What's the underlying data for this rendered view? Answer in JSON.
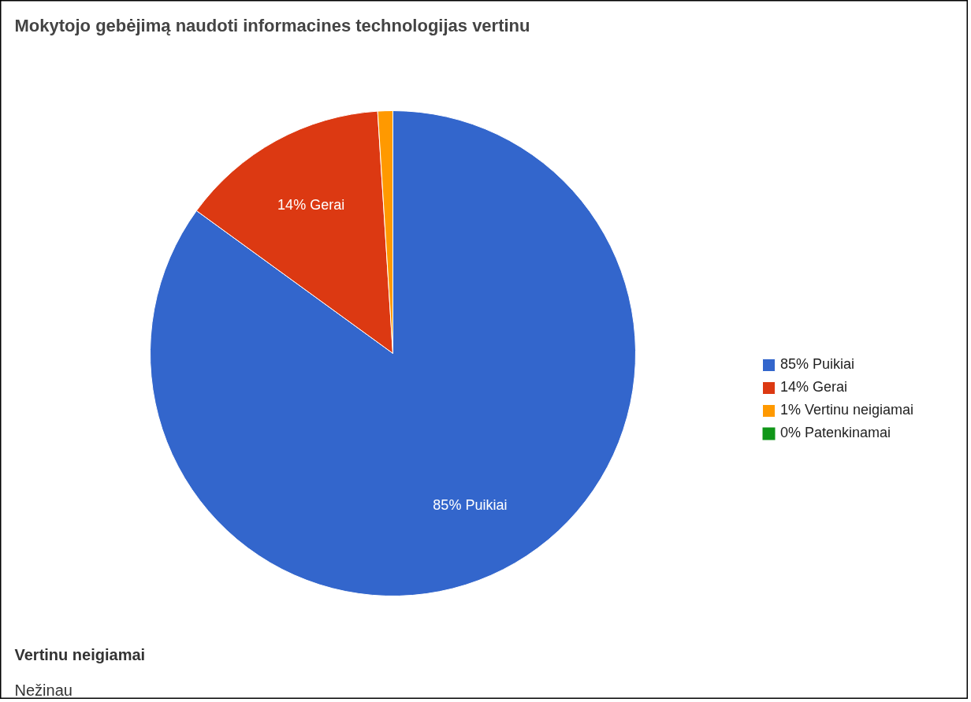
{
  "chart_data": {
    "type": "pie",
    "title": "Mokytojo gebėjimą naudoti informacines technologijas vertinu",
    "categories": [
      "85% Puikiai",
      "14% Gerai",
      "1% Vertinu neigiamai",
      "0% Patenkinamai"
    ],
    "values": [
      85,
      14,
      1,
      0
    ],
    "colors": [
      "#3366cc",
      "#dc3912",
      "#ff9900",
      "#109618"
    ],
    "value_labels": [
      "85% Puikiai",
      "14% Gerai",
      null,
      null
    ],
    "legend": "right",
    "annotations": [
      "Vertinu neigiamai",
      "Nežinau"
    ]
  }
}
